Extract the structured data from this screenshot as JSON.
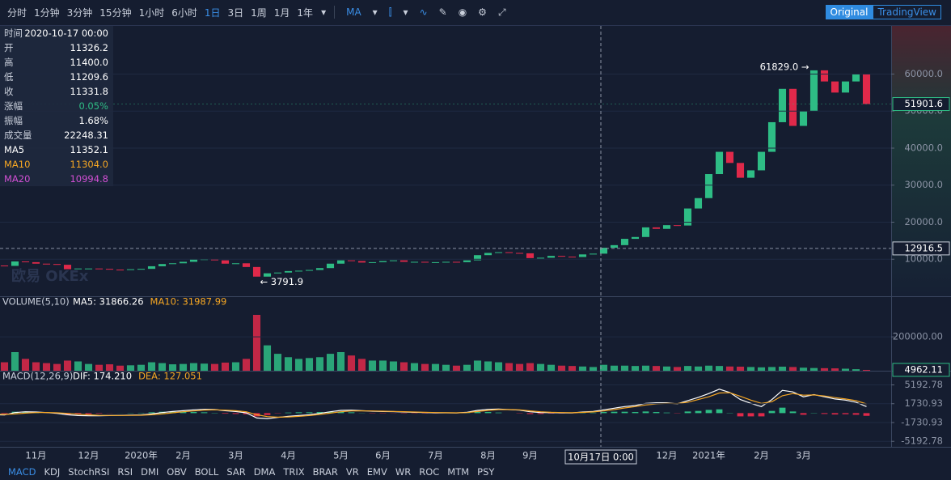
{
  "toolbar": {
    "intervals": [
      "分时",
      "1分钟",
      "3分钟",
      "15分钟",
      "1小时",
      "6小时",
      "1日",
      "3日",
      "1周",
      "1月",
      "1年"
    ],
    "active": "1日",
    "indicator": "MA",
    "views": [
      "Original",
      "TradingView"
    ],
    "active_view": "Original"
  },
  "info": {
    "rows": [
      [
        "时间",
        "2020-10-17 00:00"
      ],
      [
        "开",
        "11326.2"
      ],
      [
        "高",
        "11400.0"
      ],
      [
        "低",
        "11209.6"
      ],
      [
        "收",
        "11331.8"
      ],
      [
        "涨幅",
        "0.05%"
      ],
      [
        "振幅",
        "1.68%"
      ],
      [
        "成交量",
        "22248.31"
      ],
      [
        "MA5",
        "11352.1"
      ],
      [
        "MA10",
        "11304.0"
      ],
      [
        "MA20",
        "10994.8"
      ]
    ],
    "colors": [
      "#c9cfdb",
      "#c9cfdb",
      "#c9cfdb",
      "#c9cfdb",
      "#c9cfdb",
      "#2ebd85",
      "#c9cfdb",
      "#c9cfdb",
      "#ffffff",
      "#f5a623",
      "#d24fd4"
    ]
  },
  "watermark": "欧易 OKEx",
  "crosshair": {
    "x_label": "10月17日 0:00",
    "value": 12916.5
  },
  "chart_data": [
    {
      "type": "candlestick",
      "values": [
        8300,
        8200,
        9400,
        9200,
        8800,
        8700,
        8500,
        7300,
        7500,
        7500,
        7400,
        7200,
        7100,
        7300,
        7400,
        8100,
        8700,
        8900,
        9300,
        9900,
        10000,
        9700,
        8800,
        8900,
        7900,
        5300,
        6200,
        6400,
        6800,
        6900,
        7100,
        7600,
        8800,
        9700,
        9500,
        9100,
        9200,
        9500,
        9700,
        9300,
        9300,
        9100,
        9200,
        9300,
        9200,
        9700,
        11100,
        11700,
        11900,
        11700,
        11600,
        10300,
        10400,
        10900,
        10700,
        10600,
        11300,
        11500,
        13100,
        13800,
        15500,
        16000,
        18600,
        18200,
        19200,
        19100,
        23700,
        26500,
        33000,
        39000,
        36000,
        32000,
        34000,
        39000,
        47000,
        56000,
        46000,
        50000,
        61000,
        58000,
        55000,
        58000,
        60000,
        51901.6
      ],
      "up_color": "#2ebd85",
      "down_color": "#e0294a",
      "ylim": [
        0,
        73000
      ],
      "yticks": [
        {
          "value": 10000,
          "label": "10000.0"
        },
        {
          "value": 20000,
          "label": "20000.0"
        },
        {
          "value": 30000,
          "label": "30000.0"
        },
        {
          "value": 40000,
          "label": "40000.0"
        },
        {
          "value": 50000,
          "label": "50000.0"
        },
        {
          "value": 60000,
          "label": "60000.0"
        }
      ],
      "grid": true,
      "last_price": 51901.6,
      "annotations": [
        {
          "text": "61829.0 →",
          "value": 61829
        },
        {
          "text": "← 3791.9",
          "value": 3791.9
        }
      ]
    },
    {
      "type": "bar",
      "title": "VOLUME(5,10)",
      "legend": [
        {
          "label": "MA5: 31866.26",
          "color": "#ffffff"
        },
        {
          "label": "MA10: 31987.99",
          "color": "#f5a623"
        }
      ],
      "values": [
        60000,
        50000,
        110000,
        70000,
        50000,
        45000,
        40000,
        60000,
        55000,
        40000,
        35000,
        38000,
        30000,
        32000,
        35000,
        50000,
        45000,
        38000,
        40000,
        45000,
        42000,
        40000,
        48000,
        50000,
        70000,
        330000,
        150000,
        100000,
        80000,
        70000,
        75000,
        80000,
        100000,
        110000,
        90000,
        70000,
        60000,
        60000,
        55000,
        50000,
        45000,
        40000,
        40000,
        35000,
        30000,
        35000,
        60000,
        55000,
        50000,
        45000,
        40000,
        45000,
        40000,
        35000,
        30000,
        28000,
        25000,
        22000,
        35000,
        30000,
        30000,
        28000,
        30000,
        28000,
        25000,
        22000,
        28000,
        25000,
        30000,
        28000,
        25000,
        24000,
        22000,
        20000,
        22000,
        24000,
        22000,
        18000,
        16000,
        15000,
        14000,
        12000,
        9000,
        4962.11
      ],
      "ylim": [
        0,
        440000
      ],
      "yticks": [
        {
          "value": 200000,
          "label": "200000.00"
        }
      ],
      "last_value": 4962.11
    },
    {
      "type": "macd",
      "title": "MACD(12,26,9)",
      "categories": [
        null,
        null,
        null,
        null,
        "11月",
        null,
        null,
        null,
        null,
        "12月",
        null,
        null,
        null,
        null,
        "2020年",
        null,
        null,
        null,
        "2月",
        null,
        null,
        null,
        null,
        "3月",
        null,
        null,
        null,
        null,
        "4月",
        null,
        null,
        null,
        null,
        "5月",
        null,
        null,
        null,
        "6月",
        null,
        null,
        null,
        null,
        "7月",
        null,
        null,
        null,
        null,
        "8月",
        null,
        null,
        null,
        "9月",
        null,
        null,
        null,
        null,
        null,
        null,
        null,
        null,
        null,
        null,
        null,
        null,
        "12月",
        null,
        null,
        null,
        "2021年",
        null,
        null,
        null,
        null,
        "2月",
        null,
        null,
        null,
        "3月",
        null,
        null,
        null,
        null,
        null,
        null
      ],
      "series": [
        {
          "name": "DIF: 174.210",
          "color": "#ffffff",
          "values": [
            -300,
            -350,
            100,
            250,
            200,
            100,
            -50,
            -300,
            -450,
            -500,
            -480,
            -450,
            -420,
            -380,
            -330,
            -150,
            100,
            300,
            450,
            600,
            700,
            650,
            450,
            300,
            50,
            -900,
            -1000,
            -800,
            -600,
            -450,
            -300,
            -50,
            250,
            500,
            550,
            450,
            350,
            300,
            280,
            200,
            150,
            100,
            60,
            50,
            40,
            150,
            500,
            700,
            750,
            650,
            550,
            250,
            100,
            80,
            50,
            40,
            200,
            300,
            600,
            900,
            1200,
            1400,
            1800,
            1900,
            1900,
            1700,
            2300,
            2900,
            3600,
            4400,
            3800,
            2500,
            1800,
            1200,
            2500,
            4200,
            3900,
            3000,
            3400,
            3000,
            2600,
            2400,
            2000,
            1200
          ]
        },
        {
          "name": "DEA: 127.051",
          "color": "#f5a623",
          "values": [
            -200,
            -250,
            -150,
            0,
            100,
            120,
            60,
            -50,
            -200,
            -320,
            -400,
            -430,
            -430,
            -420,
            -390,
            -300,
            -150,
            50,
            250,
            400,
            550,
            600,
            550,
            450,
            250,
            -300,
            -650,
            -750,
            -700,
            -600,
            -450,
            -250,
            0,
            250,
            400,
            420,
            400,
            350,
            310,
            260,
            200,
            150,
            100,
            70,
            50,
            100,
            300,
            500,
            650,
            650,
            600,
            420,
            250,
            150,
            100,
            70,
            130,
            220,
            400,
            650,
            950,
            1200,
            1500,
            1700,
            1800,
            1750,
            2000,
            2500,
            3000,
            3700,
            3750,
            3100,
            2400,
            1800,
            2100,
            3200,
            3600,
            3300,
            3350,
            3150,
            2850,
            2600,
            2300,
            1700
          ]
        }
      ],
      "histogram": [
        -100,
        -100,
        250,
        250,
        100,
        -20,
        -110,
        -250,
        -250,
        -180,
        -80,
        -20,
        10,
        40,
        60,
        150,
        250,
        250,
        200,
        200,
        150,
        50,
        -100,
        -150,
        -200,
        -600,
        -350,
        -50,
        100,
        150,
        150,
        200,
        250,
        250,
        150,
        30,
        -50,
        -50,
        -30,
        -60,
        -50,
        -50,
        -40,
        -20,
        -10,
        50,
        200,
        200,
        100,
        0,
        -50,
        -170,
        -150,
        -70,
        -50,
        -30,
        70,
        80,
        200,
        250,
        250,
        200,
        300,
        200,
        100,
        -50,
        300,
        400,
        600,
        700,
        50,
        -600,
        -600,
        -600,
        400,
        1000,
        300,
        -300,
        50,
        -150,
        -250,
        -200,
        -300,
        -500
      ],
      "up_color": "#2ebd85",
      "down_color": "#e0294a",
      "ylim": [
        -6200,
        7800
      ],
      "yticks": [
        -5192.78,
        -1730.93,
        1730.93,
        5192.78
      ]
    }
  ],
  "indicator_tabs": [
    "MACD",
    "KDJ",
    "StochRSI",
    "RSI",
    "DMI",
    "OBV",
    "BOLL",
    "SAR",
    "DMA",
    "TRIX",
    "BRAR",
    "VR",
    "EMV",
    "WR",
    "ROC",
    "MTM",
    "PSY"
  ],
  "active_tab": "MACD"
}
